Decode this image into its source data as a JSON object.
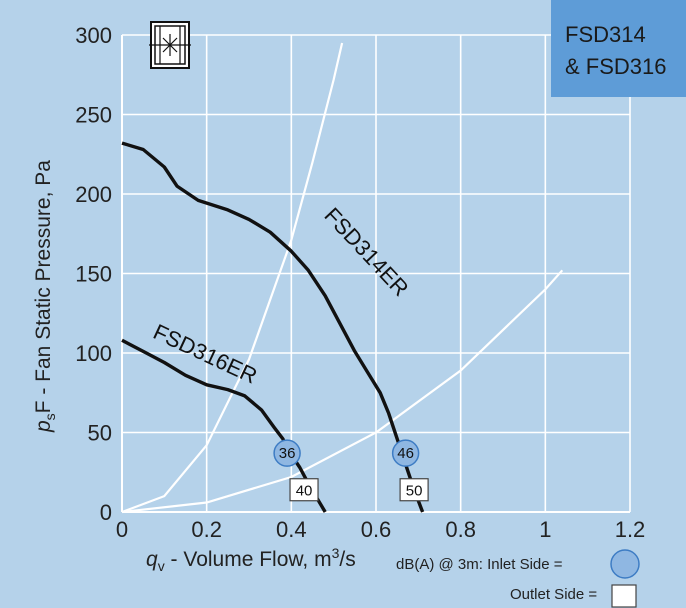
{
  "chart_data": {
    "type": "line",
    "title_lines": [
      "FSD314",
      "& FSD316"
    ],
    "xlabel_var": "q",
    "xlabel_sub": "v",
    "xlabel_rest": " - Volume Flow, m",
    "xlabel_sup": "3",
    "xlabel_unit_tail": "/s",
    "ylabel_var": "p",
    "ylabel_sub": "s",
    "ylabel_rest": "F - Fan Static Pressure, Pa",
    "xlim": [
      0,
      1.2
    ],
    "ylim": [
      0,
      300
    ],
    "x_ticks": [
      0,
      0.2,
      0.4,
      0.6,
      0.8,
      1,
      1.2
    ],
    "x_tick_labels": [
      "0",
      "0.2",
      "0.4",
      "0.6",
      "0.8",
      "1",
      "1.2"
    ],
    "y_ticks": [
      0,
      50,
      100,
      150,
      200,
      250,
      300
    ],
    "y_tick_labels": [
      "0",
      "50",
      "100",
      "150",
      "200",
      "250",
      "300"
    ],
    "grid": true,
    "series": [
      {
        "name": "FSD314ER",
        "color": "#111111",
        "x": [
          0,
          0.05,
          0.1,
          0.13,
          0.18,
          0.25,
          0.3,
          0.35,
          0.4,
          0.44,
          0.48,
          0.52,
          0.55,
          0.58,
          0.61,
          0.63,
          0.65,
          0.67,
          0.69,
          0.71
        ],
        "y": [
          232,
          228,
          217,
          205,
          196,
          190,
          184,
          176,
          164,
          152,
          136,
          116,
          101,
          88,
          75,
          62,
          46,
          30,
          14,
          0
        ],
        "label": {
          "x": 0.475,
          "y": 186,
          "angle": 47
        }
      },
      {
        "name": "FSD316ER",
        "color": "#111111",
        "x": [
          0,
          0.05,
          0.1,
          0.15,
          0.2,
          0.25,
          0.29,
          0.33,
          0.36,
          0.38,
          0.4,
          0.42,
          0.44,
          0.46,
          0.48
        ],
        "y": [
          108,
          101,
          94,
          86,
          80,
          77,
          73,
          64,
          53,
          46,
          36,
          28,
          18,
          9,
          0
        ],
        "label": {
          "x": 0.07,
          "y": 110,
          "angle": 25
        }
      }
    ],
    "system_curves": [
      {
        "color": "#ffffff",
        "x": [
          0,
          0.1,
          0.2,
          0.3,
          0.4,
          0.45,
          0.5,
          0.52
        ],
        "y": [
          0,
          10,
          42,
          96,
          171,
          220,
          272,
          295
        ]
      },
      {
        "color": "#ffffff",
        "x": [
          0,
          0.2,
          0.4,
          0.6,
          0.8,
          1.0,
          1.04
        ],
        "y": [
          0,
          6,
          22,
          50,
          89,
          140,
          152
        ]
      }
    ],
    "annotations": {
      "inlet": [
        {
          "x": 0.39,
          "y": 37,
          "label": "36"
        },
        {
          "x": 0.67,
          "y": 37,
          "label": "46"
        }
      ],
      "outlet": [
        {
          "x": 0.43,
          "y": 14,
          "label": "40"
        },
        {
          "x": 0.69,
          "y": 14,
          "label": "50"
        }
      ]
    },
    "legend": {
      "placement": "bottom-right",
      "inlet_label": "dB(A) @ 3m: Inlet Side  =",
      "outlet_label": "Outlet Side ="
    },
    "colors": {
      "background": "#b5d2ea",
      "title_box": "#5e9cd7",
      "inlet_badge": "#8fb7e2",
      "outlet_badge": "#ffffff"
    },
    "icons": [
      "fan-product-icon"
    ]
  }
}
